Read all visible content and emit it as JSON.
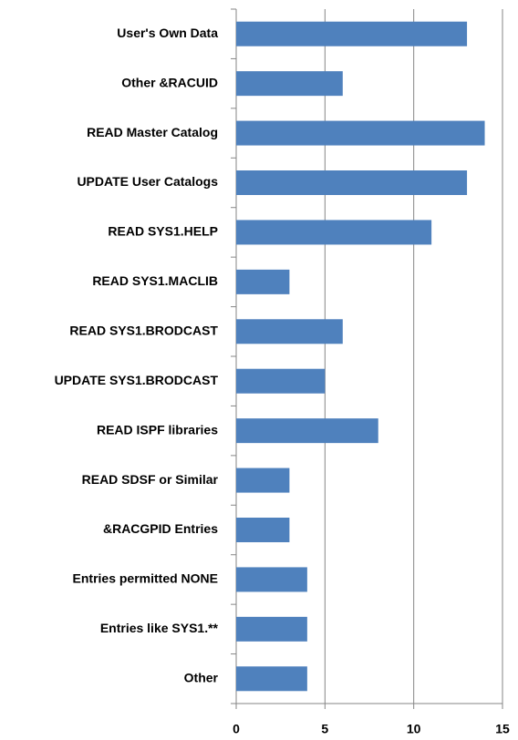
{
  "chart_data": {
    "type": "bar",
    "orientation": "horizontal",
    "categories": [
      "User's Own Data",
      "Other &RACUID",
      "READ Master Catalog",
      "UPDATE User Catalogs",
      "READ SYS1.HELP",
      "READ SYS1.MACLIB",
      "READ SYS1.BRODCAST",
      "UPDATE SYS1.BRODCAST",
      "READ ISPF libraries",
      "READ SDSF or Similar",
      "&RACGPID Entries",
      "Entries permitted NONE",
      "Entries like SYS1.**",
      "Other"
    ],
    "values": [
      13,
      6,
      14,
      13,
      11,
      3,
      6,
      5,
      8,
      3,
      3,
      4,
      4,
      4
    ],
    "color": "#4f81bd",
    "xlim": [
      0,
      15
    ],
    "xticks": [
      0,
      5,
      10,
      15
    ],
    "grid": true
  }
}
